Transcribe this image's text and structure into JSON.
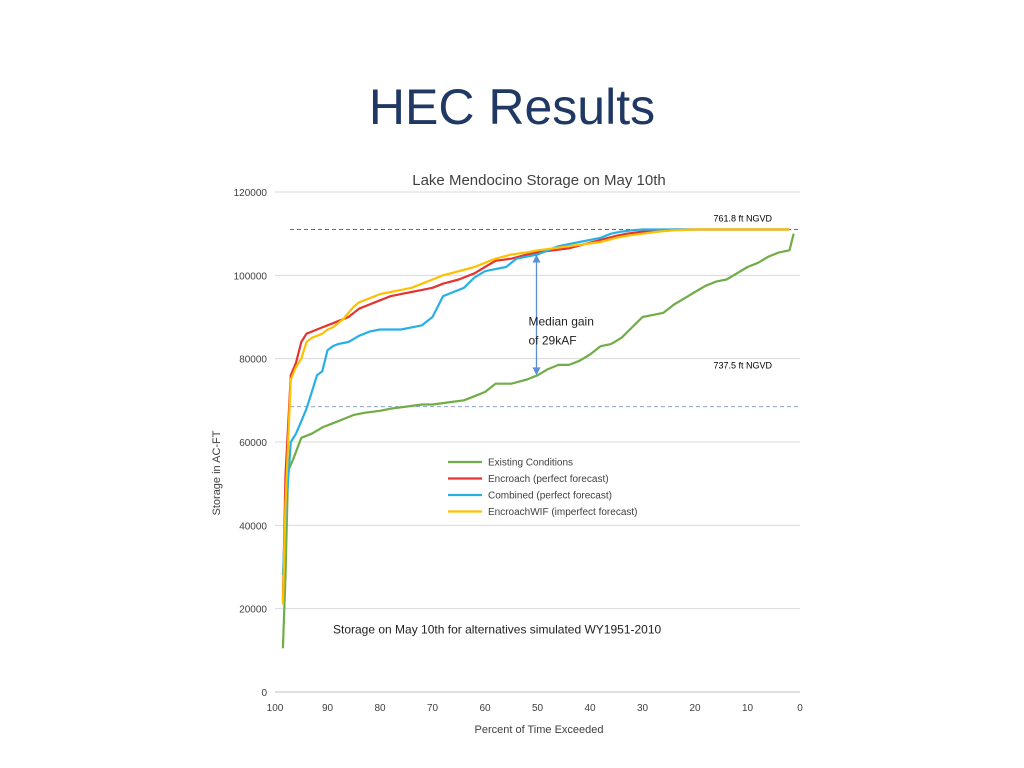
{
  "slide": {
    "title": "HEC Results"
  },
  "chart_data": {
    "type": "line",
    "title": "Lake Mendocino Storage on May 10th",
    "xlabel": "Percent of Time Exceeded",
    "ylabel": "Storage in AC-FT",
    "xlim": [
      100,
      0
    ],
    "ylim": [
      0,
      120000
    ],
    "x_ticks": [
      100,
      90,
      80,
      70,
      60,
      50,
      40,
      30,
      20,
      10,
      0
    ],
    "y_ticks": [
      0,
      20000,
      40000,
      60000,
      80000,
      100000,
      120000
    ],
    "grid": "horizontal",
    "legend_position": "center",
    "reference_lines": [
      {
        "label": "761.8 ft NGVD",
        "value": 111000,
        "color": "#4a6fa5"
      },
      {
        "label": "737.5 ft NGVD",
        "value": 68500,
        "color": "#8aa4c8"
      }
    ],
    "annotations": [
      {
        "lines": [
          "Median gain",
          "of 29kAF"
        ],
        "x": 50,
        "y_from": 105000,
        "y_to": 76000
      },
      {
        "lines": [
          "Storage on May 10th for alternatives simulated WY1951-2010"
        ]
      }
    ],
    "series": [
      {
        "name": "Existing Conditions",
        "color": "#70ad47",
        "x": [
          98.5,
          98,
          97.5,
          96.5,
          95,
          93,
          91,
          89,
          87,
          85,
          83,
          80,
          78,
          75,
          72,
          70,
          67,
          64,
          62,
          60,
          58,
          55,
          52,
          50,
          48,
          46,
          44,
          42,
          40,
          38,
          36,
          34,
          32,
          30,
          28,
          26,
          24,
          22,
          20,
          18,
          16,
          14,
          12,
          10,
          8,
          6,
          4,
          2,
          1.2
        ],
        "values": [
          10500,
          28000,
          53000,
          56000,
          61000,
          62000,
          63500,
          64500,
          65500,
          66500,
          67000,
          67500,
          68000,
          68500,
          69000,
          69000,
          69500,
          70000,
          71000,
          72000,
          74000,
          74000,
          75000,
          76000,
          77500,
          78500,
          78500,
          79500,
          81000,
          83000,
          83500,
          85000,
          87500,
          90000,
          90500,
          91000,
          93000,
          94500,
          96000,
          97500,
          98500,
          99000,
          100500,
          102000,
          103000,
          104500,
          105500,
          106000,
          110000
        ]
      },
      {
        "name": "Encroach (perfect forecast)",
        "color": "#e3342f",
        "x": [
          98.5,
          98,
          97,
          96,
          95,
          94,
          93,
          92,
          91,
          90,
          89,
          88,
          87,
          86,
          85,
          84,
          82,
          80,
          78,
          76,
          74,
          72,
          70,
          68,
          65,
          62,
          60,
          58,
          55,
          52,
          50,
          47,
          44,
          41,
          38,
          35,
          33,
          30,
          27,
          24,
          20,
          15,
          10,
          5,
          2
        ],
        "values": [
          22000,
          52000,
          76000,
          79000,
          84000,
          86000,
          86500,
          87000,
          87500,
          88000,
          88500,
          89000,
          89500,
          90000,
          91000,
          92000,
          93000,
          94000,
          95000,
          95500,
          96000,
          96500,
          97000,
          98000,
          99000,
          100500,
          102000,
          103500,
          104000,
          105000,
          105500,
          106000,
          106500,
          107500,
          108500,
          109500,
          110000,
          110500,
          110800,
          111000,
          111000,
          111000,
          111000,
          111000,
          111000
        ]
      },
      {
        "name": "Combined (perfect forecast)",
        "color": "#28b0e6",
        "x": [
          98.5,
          98,
          97,
          96,
          95,
          94,
          93,
          92,
          91,
          90,
          89,
          88,
          86,
          84,
          82,
          80,
          78,
          76,
          74,
          72,
          70,
          68,
          66,
          64,
          62,
          60,
          58,
          56,
          54,
          52,
          50,
          48,
          46,
          44,
          42,
          40,
          38,
          36,
          34,
          32,
          30,
          27,
          24,
          20,
          15,
          10,
          5,
          2
        ],
        "values": [
          28000,
          42000,
          60000,
          62000,
          65000,
          68000,
          72000,
          76000,
          77000,
          82000,
          83000,
          83500,
          84000,
          85500,
          86500,
          87000,
          87000,
          87000,
          87500,
          88000,
          90000,
          95000,
          96000,
          97000,
          99500,
          101000,
          101500,
          102000,
          104000,
          104500,
          105000,
          106000,
          107000,
          107500,
          108000,
          108500,
          109000,
          110000,
          110500,
          110800,
          111000,
          111000,
          111000,
          111000,
          111000,
          111000,
          111000,
          111000
        ]
      },
      {
        "name": "EncroachWIF (imperfect forecast)",
        "color": "#ffc000",
        "x": [
          98.5,
          98,
          97,
          96,
          95,
          94,
          93,
          92,
          91,
          90,
          89,
          88,
          87,
          86,
          85,
          84,
          82,
          80,
          78,
          76,
          74,
          72,
          70,
          68,
          65,
          62,
          60,
          58,
          55,
          52,
          50,
          47,
          44,
          41,
          38,
          35,
          33,
          30,
          27,
          24,
          20,
          15,
          10,
          5,
          2
        ],
        "values": [
          21000,
          45000,
          75000,
          78000,
          80000,
          84000,
          85000,
          85500,
          86000,
          87000,
          87500,
          88500,
          89500,
          91000,
          92500,
          93500,
          94500,
          95500,
          96000,
          96500,
          97000,
          98000,
          99000,
          100000,
          101000,
          102000,
          103000,
          104000,
          105000,
          105500,
          106000,
          106500,
          107000,
          107500,
          108000,
          109000,
          109500,
          110000,
          110500,
          110800,
          111000,
          111000,
          111000,
          111000,
          111000
        ]
      }
    ]
  }
}
